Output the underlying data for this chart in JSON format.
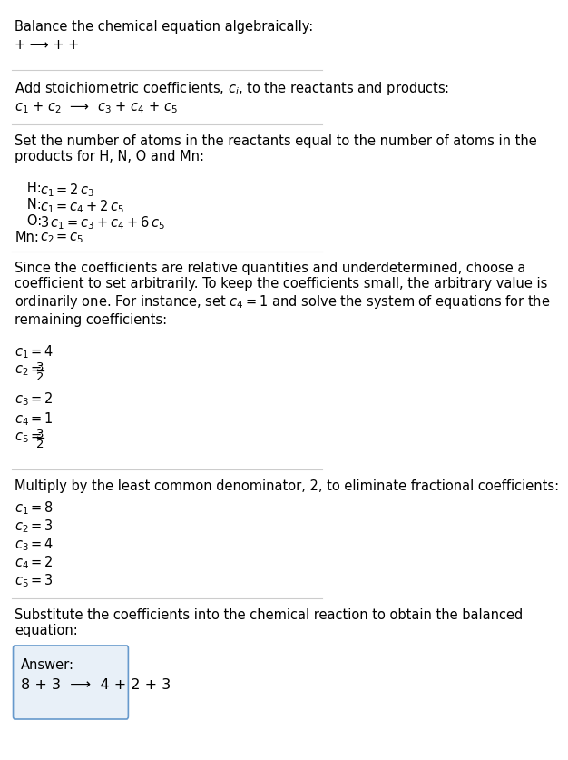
{
  "title": "Balance the chemical equation algebraically:",
  "reaction_line": "+ ⟶ + +",
  "section1_title": "Add stoichiometric coefficients, $c_i$, to the reactants and products:",
  "section1_eq": "$c_1$ + $c_2$  ⟶  $c_3$ + $c_4$ + $c_5$",
  "section2_title": "Set the number of atoms in the reactants equal to the number of atoms in the\nproducts for H, N, O and Mn:",
  "section2_lines": [
    "   H:   $c_1 = 2\\,c_3$",
    "   N:   $c_1 = c_4 + 2\\,c_5$",
    "   O:   $3\\,c_1 = c_3 + c_4 + 6\\,c_5$",
    "Mn:   $c_2 = c_5$"
  ],
  "section3_title": "Since the coefficients are relative quantities and underdetermined, choose a\ncoefficient to set arbitrarily. To keep the coefficients small, the arbitrary value is\nordinarily one. For instance, set $c_4 = 1$ and solve the system of equations for the\nremaining coefficients:",
  "section3_lines_math": [
    "$c_1 = 4$",
    "$c_3 = 2$",
    "$c_4 = 1$"
  ],
  "section3_frac_lines": [
    [
      "$c_2 = $",
      "3",
      "2"
    ],
    [
      "$c_5 = $",
      "3",
      "2"
    ]
  ],
  "section4_title": "Multiply by the least common denominator, 2, to eliminate fractional coefficients:",
  "section4_lines": [
    "$c_1 = 8$",
    "$c_2 = 3$",
    "$c_3 = 4$",
    "$c_4 = 2$",
    "$c_5 = 3$"
  ],
  "section5_title": "Substitute the coefficients into the chemical reaction to obtain the balanced\nequation:",
  "answer_label": "Answer:",
  "answer_eq": "8 + 3  ⟶  4 + 2 + 3",
  "bg_color": "#ffffff",
  "text_color": "#000000",
  "line_color": "#cccccc",
  "answer_box_color": "#e8f0f8",
  "answer_box_border": "#6699cc"
}
